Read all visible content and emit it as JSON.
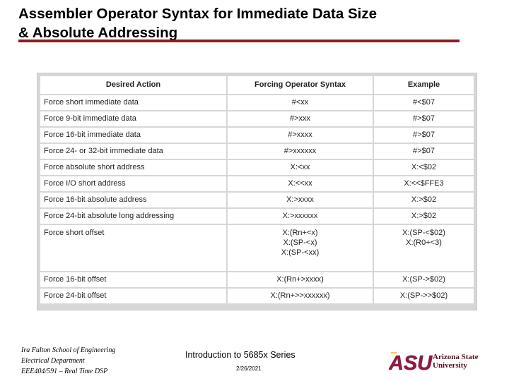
{
  "title": {
    "line1": "Assembler Operator Syntax for Immediate Data Size",
    "line2": "& Absolute Addressing"
  },
  "table": {
    "headers": [
      "Desired Action",
      "Forcing Operator Syntax",
      "Example"
    ],
    "rows": [
      {
        "action": "Force short immediate data",
        "syntax": [
          "#<xx"
        ],
        "example": [
          "#<$07"
        ]
      },
      {
        "action": "Force 9-bit immediate data",
        "syntax": [
          "#>xxx"
        ],
        "example": [
          "#>$07"
        ]
      },
      {
        "action": "Force 16-bit immediate data",
        "syntax": [
          "#>xxxx"
        ],
        "example": [
          "#>$07"
        ]
      },
      {
        "action": "Force 24- or 32-bit immediate data",
        "syntax": [
          "#>xxxxxx"
        ],
        "example": [
          "#>$07"
        ]
      },
      {
        "action": "Force absolute short address",
        "syntax": [
          "X:<xx"
        ],
        "example": [
          "X:<$02"
        ]
      },
      {
        "action": "Force I/O short address",
        "syntax": [
          "X:<<xx"
        ],
        "example": [
          "X:<<$FFE3"
        ]
      },
      {
        "action": "Force 16-bit absolute address",
        "syntax": [
          "X:>xxxx"
        ],
        "example": [
          "X:>$02"
        ]
      },
      {
        "action": "Force 24-bit absolute long addressing",
        "syntax": [
          "X:>xxxxxx"
        ],
        "example": [
          "X:>$02"
        ]
      },
      {
        "action": "Force short offset",
        "syntax": [
          "X:(Rn+<x)",
          "X:(SP-<x)",
          "X:(SP-<xx)"
        ],
        "example": [
          "X:(SP-<$02)",
          "X:(R0+<3)"
        ]
      },
      {
        "action": "Force 16-bit offset",
        "syntax": [
          "X:(Rn+>xxxx)"
        ],
        "example": [
          "X:(SP->$02)"
        ]
      },
      {
        "action": "Force 24-bit offset",
        "syntax": [
          "X:(Rn+>>xxxxxx)"
        ],
        "example": [
          "X:(SP->>$02)"
        ]
      }
    ]
  },
  "footer": {
    "left_lines": [
      "Ira Fulton School of Engineering",
      "Electrical Department",
      "EEE404/591 – Real Time DSP"
    ],
    "center_title": "Introduction to 5685x Series",
    "date": "2/26/2021",
    "logo_letters": "ASU",
    "logo_words": [
      "Arizona State",
      "University"
    ]
  },
  "colors": {
    "title_rule": "#8b1e1e",
    "logo_maroon": "#8c1d40",
    "logo_gold": "#ffc627"
  }
}
